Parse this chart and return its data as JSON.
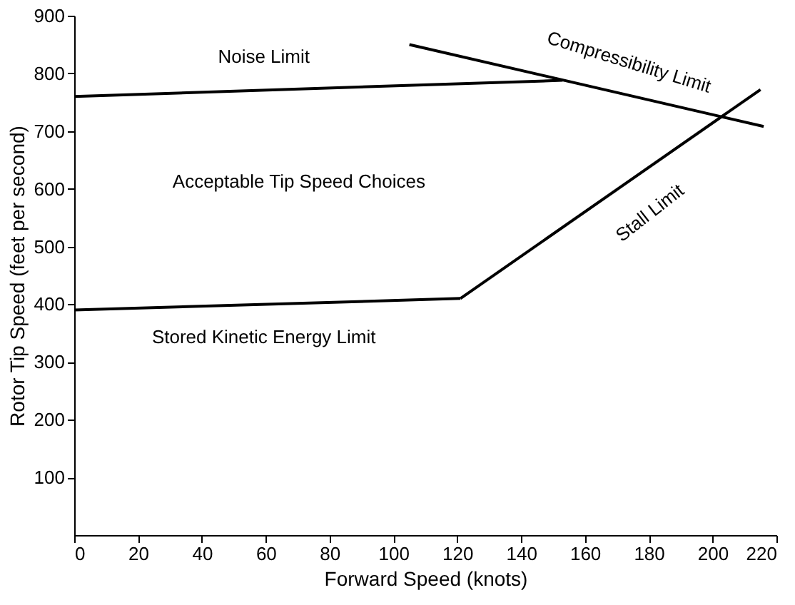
{
  "chart_data": {
    "type": "line",
    "xlabel": "Forward Speed (knots)",
    "ylabel": "Rotor Tip Speed (feet per second)",
    "xlim": [
      0,
      220
    ],
    "xticks": [
      0,
      20,
      40,
      60,
      80,
      100,
      120,
      140,
      160,
      180,
      200,
      220
    ],
    "ylim": [
      0,
      900
    ],
    "yticks": [
      100,
      200,
      300,
      400,
      500,
      600,
      700,
      800,
      900
    ],
    "grid": false,
    "marker": "none",
    "line_style": "solid",
    "series": [
      {
        "color": "#000000",
        "x": [
          0,
          153
        ],
        "values": [
          760,
          788
        ]
      },
      {
        "color": "#000000",
        "x": [
          105,
          216
        ],
        "values": [
          850,
          708
        ]
      },
      {
        "color": "#000000",
        "x": [
          0,
          121
        ],
        "values": [
          390,
          410
        ]
      },
      {
        "color": "#000000",
        "x": [
          121,
          215
        ],
        "values": [
          410,
          772
        ]
      }
    ],
    "annotations": [
      "Noise Limit",
      "Compressibility Limit",
      "Acceptable Tip Speed Choices",
      "Stall Limit",
      "Stored Kinetic Energy Limit"
    ]
  }
}
